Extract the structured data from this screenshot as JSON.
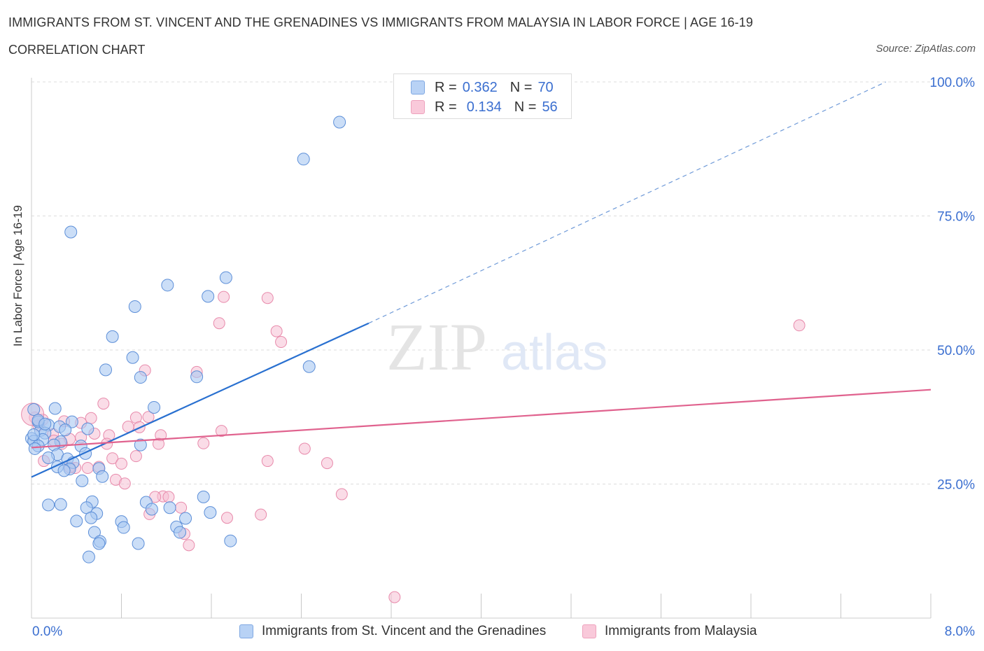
{
  "header": {
    "title": "IMMIGRANTS FROM ST. VINCENT AND THE GRENADINES VS IMMIGRANTS FROM MALAYSIA IN LABOR FORCE | AGE 16-19",
    "subtitle": "CORRELATION CHART",
    "source": "Source: ZipAtlas.com"
  },
  "legend": {
    "r_label": "R =",
    "n_label": "N =",
    "series1": {
      "r": "0.362",
      "n": "70"
    },
    "series2": {
      "r": "0.134",
      "n": "56"
    }
  },
  "watermark": {
    "zip": "ZIP",
    "atlas": "atlas"
  },
  "colors": {
    "blue_fill": "#a9c8f2",
    "blue_stroke": "#5d8fd8",
    "blue_line": "#2970d0",
    "pink_fill": "#f6bfd3",
    "pink_stroke": "#e88aab",
    "pink_line": "#e0628e",
    "tick_text": "#3b6fd0",
    "grid": "#dcdcdc"
  },
  "chart_data": {
    "type": "scatter",
    "ylabel": "In Labor Force | Age 16-19",
    "xlim": [
      0,
      8
    ],
    "ylim": [
      0,
      100
    ],
    "x_tick_labels": [
      "0.0%",
      "8.0%"
    ],
    "y_ticks": [
      25,
      50,
      75,
      100
    ],
    "y_tick_labels": [
      "25.0%",
      "50.0%",
      "75.0%",
      "100.0%"
    ],
    "grid": true,
    "series": [
      {
        "name": "Immigrants from St. Vincent and the Grenadines",
        "color": "blue",
        "trend": {
          "x0": 0,
          "y0": 26.3,
          "x1": 3.0,
          "y1": 55,
          "x2": 7.6,
          "y2": 100
        },
        "points": [
          [
            2.74,
            92.5
          ],
          [
            2.42,
            85.6
          ],
          [
            0.35,
            72.0
          ],
          [
            1.21,
            62.1
          ],
          [
            1.73,
            63.5
          ],
          [
            1.57,
            60.0
          ],
          [
            0.92,
            58.1
          ],
          [
            0.72,
            52.5
          ],
          [
            0.9,
            48.6
          ],
          [
            2.47,
            46.9
          ],
          [
            0.66,
            46.3
          ],
          [
            0.97,
            44.9
          ],
          [
            1.47,
            45.0
          ],
          [
            0.02,
            38.9
          ],
          [
            0.21,
            39.1
          ],
          [
            1.09,
            39.3
          ],
          [
            0.36,
            36.6
          ],
          [
            0.5,
            35.3
          ],
          [
            0.08,
            35.0
          ],
          [
            0.15,
            36.0
          ],
          [
            0.06,
            36.6
          ],
          [
            0.25,
            35.7
          ],
          [
            0.12,
            34.5
          ],
          [
            0.0,
            33.5
          ],
          [
            0.02,
            33.0
          ],
          [
            0.1,
            33.3
          ],
          [
            0.26,
            32.9
          ],
          [
            0.06,
            32.1
          ],
          [
            0.2,
            32.3
          ],
          [
            0.44,
            32.1
          ],
          [
            0.97,
            32.3
          ],
          [
            0.03,
            31.6
          ],
          [
            0.23,
            30.5
          ],
          [
            0.48,
            30.7
          ],
          [
            0.15,
            29.9
          ],
          [
            0.32,
            29.7
          ],
          [
            0.37,
            29.0
          ],
          [
            0.23,
            28.2
          ],
          [
            0.34,
            27.8
          ],
          [
            0.6,
            27.9
          ],
          [
            0.29,
            27.5
          ],
          [
            0.63,
            26.4
          ],
          [
            0.45,
            25.6
          ],
          [
            1.53,
            22.6
          ],
          [
            0.54,
            21.7
          ],
          [
            1.02,
            21.6
          ],
          [
            0.15,
            21.1
          ],
          [
            0.26,
            21.2
          ],
          [
            0.49,
            20.6
          ],
          [
            1.07,
            20.3
          ],
          [
            1.23,
            20.6
          ],
          [
            1.59,
            19.7
          ],
          [
            0.58,
            19.5
          ],
          [
            0.53,
            18.7
          ],
          [
            1.37,
            18.6
          ],
          [
            0.4,
            18.1
          ],
          [
            0.8,
            18.0
          ],
          [
            1.29,
            17.0
          ],
          [
            0.82,
            16.9
          ],
          [
            0.56,
            16.0
          ],
          [
            1.32,
            16.0
          ],
          [
            0.61,
            14.3
          ],
          [
            0.6,
            13.9
          ],
          [
            0.95,
            13.9
          ],
          [
            1.77,
            14.4
          ],
          [
            0.51,
            11.4
          ],
          [
            0.06,
            36.9
          ],
          [
            0.12,
            36.2
          ],
          [
            0.02,
            34.2
          ],
          [
            0.3,
            35.1
          ]
        ]
      },
      {
        "name": "Immigrants from Malaysia",
        "color": "pink",
        "trend": {
          "x0": 0,
          "y0": 31.8,
          "x1": 8.0,
          "y1": 42.6
        },
        "points": [
          [
            6.83,
            54.6
          ],
          [
            1.71,
            59.9
          ],
          [
            2.1,
            59.7
          ],
          [
            1.67,
            55.0
          ],
          [
            2.18,
            53.5
          ],
          [
            2.22,
            51.5
          ],
          [
            1.01,
            46.2
          ],
          [
            1.47,
            45.9
          ],
          [
            0.64,
            40.0
          ],
          [
            0.93,
            37.4
          ],
          [
            1.04,
            37.5
          ],
          [
            0.53,
            37.3
          ],
          [
            0.1,
            37.0
          ],
          [
            0.03,
            37.4
          ],
          [
            0.29,
            36.7
          ],
          [
            0.44,
            36.4
          ],
          [
            0.86,
            35.7
          ],
          [
            0.06,
            35.9
          ],
          [
            0.96,
            35.6
          ],
          [
            0.19,
            34.3
          ],
          [
            1.69,
            34.9
          ],
          [
            0.56,
            34.4
          ],
          [
            1.15,
            34.1
          ],
          [
            0.69,
            34.1
          ],
          [
            0.34,
            33.4
          ],
          [
            0.44,
            33.7
          ],
          [
            0.2,
            33.1
          ],
          [
            1.13,
            32.5
          ],
          [
            1.53,
            32.6
          ],
          [
            0.27,
            32.5
          ],
          [
            0.67,
            32.5
          ],
          [
            2.43,
            31.6
          ],
          [
            0.93,
            30.2
          ],
          [
            0.72,
            29.8
          ],
          [
            0.11,
            29.3
          ],
          [
            0.8,
            28.8
          ],
          [
            2.1,
            29.3
          ],
          [
            2.63,
            28.9
          ],
          [
            0.39,
            28.0
          ],
          [
            0.5,
            28.0
          ],
          [
            0.6,
            28.2
          ],
          [
            0.34,
            28.1
          ],
          [
            0.75,
            25.8
          ],
          [
            0.83,
            25.1
          ],
          [
            1.17,
            22.7
          ],
          [
            1.22,
            22.6
          ],
          [
            1.1,
            22.6
          ],
          [
            2.76,
            23.1
          ],
          [
            1.05,
            19.4
          ],
          [
            2.04,
            19.3
          ],
          [
            1.33,
            20.6
          ],
          [
            1.74,
            18.7
          ],
          [
            1.36,
            15.7
          ],
          [
            1.4,
            13.6
          ],
          [
            3.23,
            3.9
          ],
          [
            0.01,
            38.0
          ]
        ]
      }
    ]
  },
  "bottom_legend": {
    "item1": "Immigrants from St. Vincent and the Grenadines",
    "item2": "Immigrants from Malaysia"
  }
}
